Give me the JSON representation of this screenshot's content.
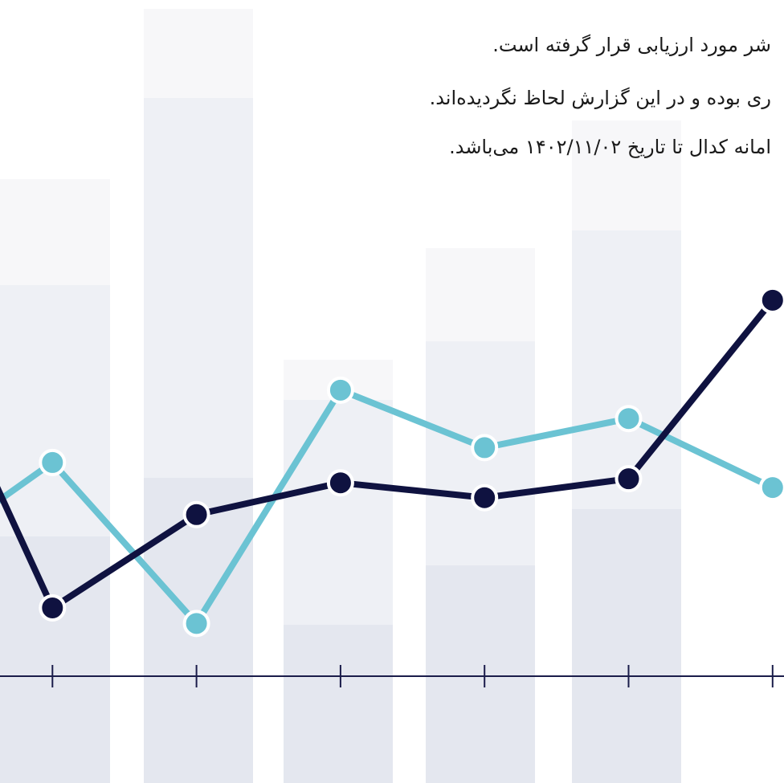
{
  "notes": [
    "شر مورد ارزیابی قرار گرفته است.",
    "ری بوده و در این گزارش لحاظ نگردیده‌اند.",
    "امانه کدال تا تاریخ ۱۴۰۲/۱۱/۰۲ می‌باشد."
  ],
  "chart_data": {
    "type": "line",
    "categories": [
      null,
      null,
      null,
      null,
      null,
      null,
      null
    ],
    "series": [
      {
        "color": "#6bc3d3",
        "values": [
          16.5,
          31.6,
          7.8,
          42.3,
          33.8,
          38.1,
          27.9
        ]
      },
      {
        "color": "#0f1240",
        "values": [
          56.5,
          10.1,
          23.9,
          28.6,
          26.4,
          29.2,
          55.6
        ]
      }
    ],
    "ylim": [
      0,
      100
    ]
  }
}
